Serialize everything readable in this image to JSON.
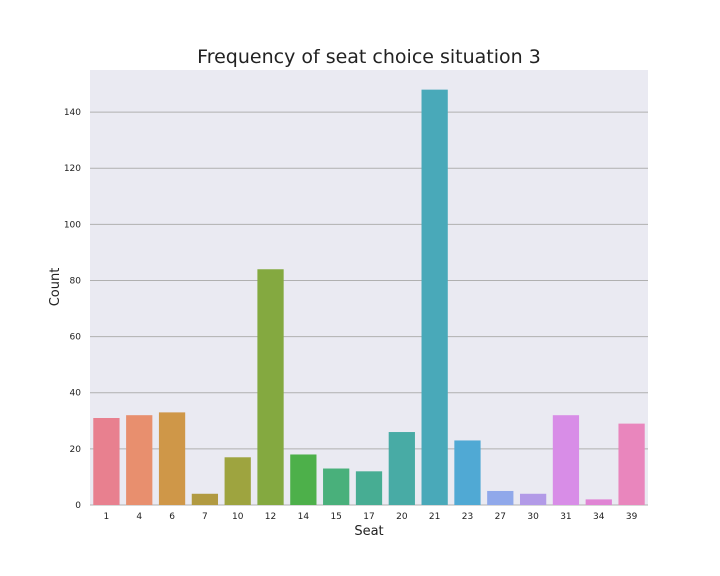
{
  "chart_data": {
    "type": "bar",
    "title": "Frequency of seat choice situation 3",
    "xlabel": "Seat",
    "ylabel": "Count",
    "categories": [
      "1",
      "4",
      "6",
      "7",
      "10",
      "12",
      "14",
      "15",
      "17",
      "20",
      "21",
      "23",
      "27",
      "30",
      "31",
      "34",
      "39"
    ],
    "values": [
      31,
      32,
      33,
      4,
      17,
      84,
      18,
      13,
      12,
      26,
      148,
      23,
      5,
      4,
      32,
      2,
      29
    ],
    "ylim": [
      0,
      155
    ],
    "yticks": [
      0,
      20,
      40,
      60,
      80,
      100,
      120,
      140
    ],
    "grid": "horizontal",
    "background_color": "#eaeaf2",
    "bar_colors": [
      "#e8808f",
      "#e88f6e",
      "#cf9748",
      "#b19a41",
      "#9ea43f",
      "#84a940",
      "#4db04a",
      "#49b07b",
      "#47ad93",
      "#48aba5",
      "#49a9b9",
      "#50a9d4",
      "#90a8ea",
      "#b29ae7",
      "#d88de7",
      "#e084d4",
      "#e986bd"
    ]
  }
}
